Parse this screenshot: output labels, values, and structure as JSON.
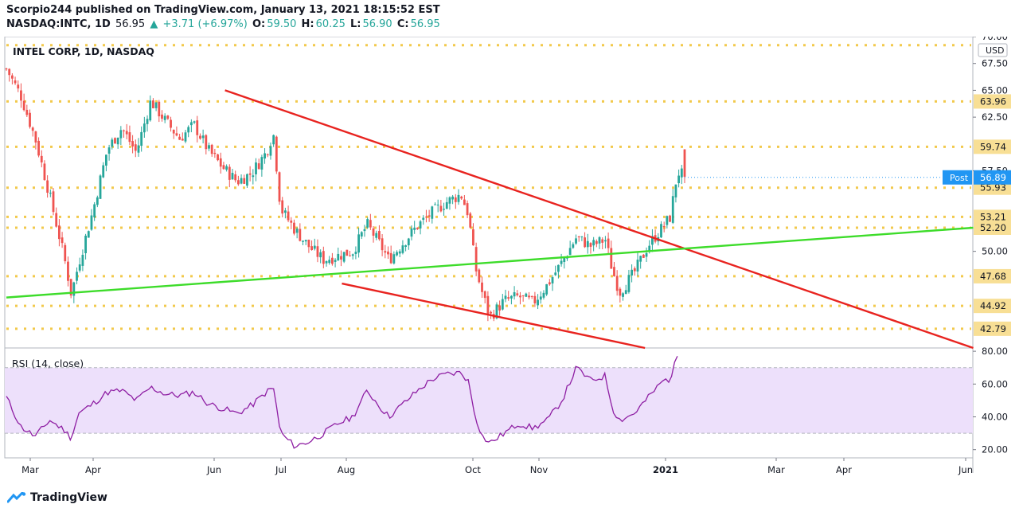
{
  "header": {
    "publisher_line": "Scorpio244 published on TradingView.com, January 13, 2021 18:15:52 EST",
    "symbol": "NASDAQ:INTC, 1D",
    "last_price": "56.95",
    "change_arrow": "▲",
    "change": "+3.71 (+6.97%)",
    "o_label": "O:",
    "o_value": "59.50",
    "h_label": "H:",
    "h_value": "60.25",
    "l_label": "L:",
    "l_value": "56.90",
    "c_label": "C:",
    "c_value": "56.95"
  },
  "legend": {
    "title": "INTEL CORP, 1D, NASDAQ",
    "rsi_label": "RSI (14, close)"
  },
  "footer": {
    "brand": "TradingView"
  },
  "colors": {
    "up": "#26a69a",
    "down": "#ef5350",
    "trendline": "#e8231f",
    "support": "#3ddc2a",
    "level": "#f2c94c",
    "level_label_bg": "#f8df95",
    "rsi_line": "#8e1ea3",
    "rsi_band": "#ede0fb",
    "post_badge": "#2196f3"
  },
  "chart_data": [
    {
      "type": "candlestick",
      "title": "INTEL CORP, 1D, NASDAQ",
      "currency": "USD",
      "ylim": [
        41,
        70
      ],
      "y_ticks": [
        "70.00",
        "67.50",
        "65.00",
        "62.50",
        "57.50",
        "50.00"
      ],
      "x_ticks": [
        "Mar",
        "Apr",
        "Jun",
        "Jul",
        "Aug",
        "Oct",
        "Nov",
        "2021",
        "Mar",
        "Apr",
        "Jun"
      ],
      "horizontal_levels": [
        "69.20",
        "63.96",
        "59.74",
        "55.93",
        "53.21",
        "52.20",
        "47.68",
        "44.92",
        "42.79"
      ],
      "post_price": {
        "label": "Post",
        "value": "56.89"
      },
      "price_path": [
        [
          0,
          67.0
        ],
        [
          2,
          64.5
        ],
        [
          4,
          60.5
        ],
        [
          6,
          55.2
        ],
        [
          8,
          49.5
        ],
        [
          9,
          46.0
        ],
        [
          10,
          48.8
        ],
        [
          12,
          53.8
        ],
        [
          14,
          59.5
        ],
        [
          16,
          61.5
        ],
        [
          18,
          59.2
        ],
        [
          20,
          64.0
        ],
        [
          22,
          62.2
        ],
        [
          24,
          60.5
        ],
        [
          26,
          61.8
        ],
        [
          28,
          59.4
        ],
        [
          30,
          57.8
        ],
        [
          32,
          56.5
        ],
        [
          34,
          57.3
        ],
        [
          36,
          59.2
        ],
        [
          37,
          61.0
        ],
        [
          38,
          54.0
        ],
        [
          40,
          52.0
        ],
        [
          42,
          50.4
        ],
        [
          44,
          49.2
        ],
        [
          46,
          49.6
        ],
        [
          48,
          50.0
        ],
        [
          50,
          52.5
        ],
        [
          52,
          50.4
        ],
        [
          53,
          49.2
        ],
        [
          55,
          50.8
        ],
        [
          57,
          52.4
        ],
        [
          59,
          53.6
        ],
        [
          61,
          54.6
        ],
        [
          63,
          55.3
        ],
        [
          64,
          53.5
        ],
        [
          65,
          48.5
        ],
        [
          66,
          46.0
        ],
        [
          67,
          43.9
        ],
        [
          69,
          45.4
        ],
        [
          71,
          45.8
        ],
        [
          73,
          45.2
        ],
        [
          75,
          46.9
        ],
        [
          77,
          49.0
        ],
        [
          79,
          51.3
        ],
        [
          81,
          50.5
        ],
        [
          83,
          51.1
        ],
        [
          84,
          48.2
        ],
        [
          85,
          46.2
        ],
        [
          87,
          48.0
        ],
        [
          89,
          50.6
        ],
        [
          91,
          52.3
        ],
        [
          92,
          53.2
        ],
        [
          93,
          57.4
        ],
        [
          94,
          57.0
        ]
      ],
      "x_unit": "trading week (approx.)"
    },
    {
      "type": "line",
      "title": "RSI (14, close)",
      "ylim": [
        15,
        82
      ],
      "y_ticks": [
        "80.00",
        "60.00",
        "40.00",
        "20.00"
      ],
      "band": [
        30,
        70
      ],
      "series": [
        {
          "values": [
            [
              0,
              52
            ],
            [
              2,
              34
            ],
            [
              4,
              28
            ],
            [
              6,
              38
            ],
            [
              8,
              32
            ],
            [
              9,
              27
            ],
            [
              10,
              42
            ],
            [
              12,
              48
            ],
            [
              14,
              55
            ],
            [
              16,
              56
            ],
            [
              18,
              50
            ],
            [
              20,
              58
            ],
            [
              22,
              54
            ],
            [
              24,
              53
            ],
            [
              26,
              55
            ],
            [
              28,
              48
            ],
            [
              30,
              45
            ],
            [
              32,
              42
            ],
            [
              34,
              47
            ],
            [
              36,
              55
            ],
            [
              37,
              58
            ],
            [
              38,
              30
            ],
            [
              40,
              22
            ],
            [
              42,
              25
            ],
            [
              44,
              30
            ],
            [
              46,
              36
            ],
            [
              48,
              40
            ],
            [
              50,
              56
            ],
            [
              52,
              45
            ],
            [
              53,
              40
            ],
            [
              55,
              48
            ],
            [
              57,
              56
            ],
            [
              59,
              63
            ],
            [
              61,
              66
            ],
            [
              63,
              67
            ],
            [
              64,
              62
            ],
            [
              65,
              40
            ],
            [
              66,
              28
            ],
            [
              67,
              24
            ],
            [
              69,
              30
            ],
            [
              71,
              36
            ],
            [
              73,
              33
            ],
            [
              75,
              38
            ],
            [
              77,
              50
            ],
            [
              79,
              70
            ],
            [
              81,
              62
            ],
            [
              83,
              65
            ],
            [
              84,
              45
            ],
            [
              85,
              38
            ],
            [
              87,
              42
            ],
            [
              89,
              52
            ],
            [
              91,
              62
            ],
            [
              92,
              63
            ],
            [
              93,
              77
            ]
          ]
        }
      ]
    }
  ]
}
